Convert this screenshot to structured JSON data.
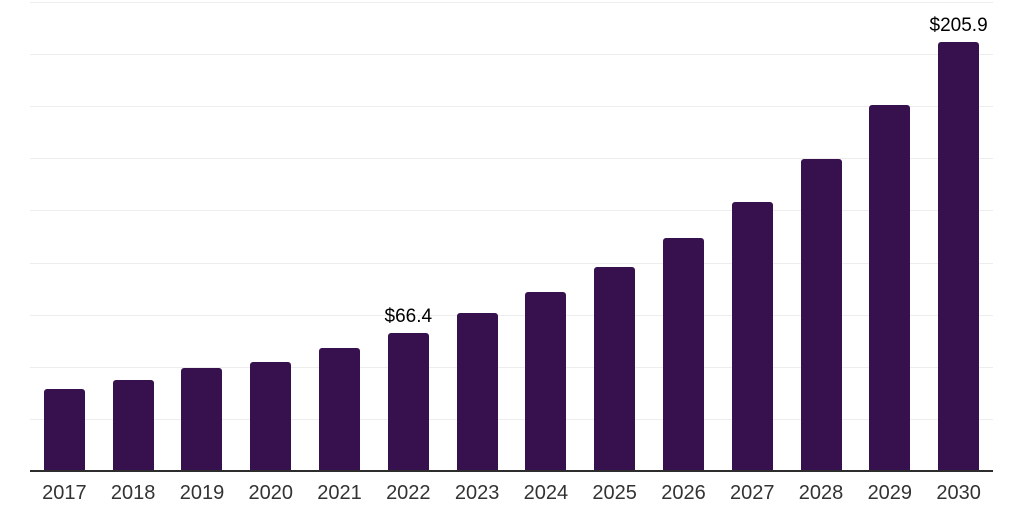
{
  "chart_data": {
    "type": "bar",
    "title": "",
    "xlabel": "",
    "ylabel": "",
    "categories": [
      "2017",
      "2018",
      "2019",
      "2020",
      "2021",
      "2022",
      "2023",
      "2024",
      "2025",
      "2026",
      "2027",
      "2028",
      "2029",
      "2030"
    ],
    "values": [
      39.4,
      43.8,
      49.4,
      52.4,
      59.1,
      66.4,
      75.9,
      85.9,
      97.7,
      111.9,
      129.0,
      149.8,
      175.4,
      205.9
    ],
    "data_labels": [
      "",
      "",
      "",
      "",
      "",
      "$66.4",
      "",
      "",
      "",
      "",
      "",
      "",
      "",
      "$205.9"
    ],
    "ylim": [
      0,
      225
    ],
    "gridline_step": 25,
    "grid": "horizontal-only",
    "legend": "none",
    "y_axis_labels": "none",
    "bar_color": "#36114e",
    "axis_line_color": "#2d2d2d",
    "gridline_color": "#ededed",
    "tick_label_color": "#333333",
    "data_label_color": "#000000",
    "background_color": "#ffffff"
  }
}
